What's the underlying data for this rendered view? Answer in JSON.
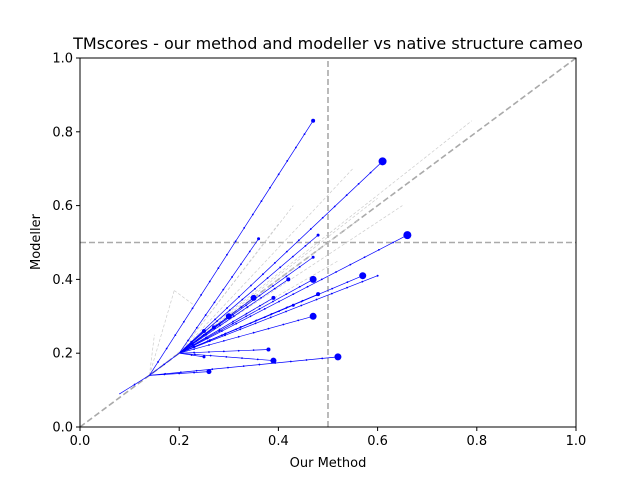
{
  "chart_data": {
    "type": "line",
    "title": "TMscores - our method and modeller vs native structure cameo",
    "xlabel": "Our Method",
    "ylabel": "Modeller",
    "xlim": [
      0,
      1
    ],
    "ylim": [
      0,
      1
    ],
    "xticks": [
      "0.0",
      "0.2",
      "0.4",
      "0.6",
      "0.8",
      "1.0"
    ],
    "yticks": [
      "0.0",
      "0.2",
      "0.4",
      "0.6",
      "0.8",
      "1.0"
    ],
    "grid": false,
    "reference_lines": {
      "diagonal": {
        "from": [
          0,
          0
        ],
        "to": [
          1,
          1
        ],
        "style": "dashed",
        "color": "#aaaaaa"
      },
      "vertical": {
        "x": 0.5,
        "style": "dashed",
        "color": "#aaaaaa"
      },
      "horizontal": {
        "y": 0.5,
        "style": "dashed",
        "color": "#aaaaaa"
      }
    },
    "colors": {
      "highlighted": "#0000ff",
      "faded": "#cccccc"
    },
    "highlighted_trajectories": [
      {
        "start": [
          0.14,
          0.14
        ],
        "end": [
          0.47,
          0.83
        ],
        "end_size": 2
      },
      {
        "start": [
          0.2,
          0.2
        ],
        "end": [
          0.61,
          0.72
        ],
        "end_size": 4
      },
      {
        "start": [
          0.2,
          0.2
        ],
        "end": [
          0.66,
          0.52
        ],
        "end_size": 4
      },
      {
        "start": [
          0.2,
          0.2
        ],
        "end": [
          0.36,
          0.51
        ],
        "end_size": 1.5
      },
      {
        "start": [
          0.2,
          0.2
        ],
        "end": [
          0.48,
          0.52
        ],
        "end_size": 1.5
      },
      {
        "start": [
          0.2,
          0.2
        ],
        "end": [
          0.47,
          0.46
        ],
        "end_size": 1.5
      },
      {
        "start": [
          0.2,
          0.2
        ],
        "end": [
          0.42,
          0.4
        ],
        "end_size": 2
      },
      {
        "start": [
          0.2,
          0.2
        ],
        "end": [
          0.47,
          0.4
        ],
        "end_size": 3.5
      },
      {
        "start": [
          0.2,
          0.2
        ],
        "end": [
          0.57,
          0.41
        ],
        "end_size": 3.5
      },
      {
        "start": [
          0.2,
          0.2
        ],
        "end": [
          0.6,
          0.41
        ],
        "end_size": 1
      },
      {
        "start": [
          0.2,
          0.2
        ],
        "end": [
          0.48,
          0.36
        ],
        "end_size": 2
      },
      {
        "start": [
          0.2,
          0.2
        ],
        "end": [
          0.35,
          0.35
        ],
        "end_size": 3
      },
      {
        "start": [
          0.2,
          0.2
        ],
        "end": [
          0.39,
          0.35
        ],
        "end_size": 2
      },
      {
        "start": [
          0.2,
          0.2
        ],
        "end": [
          0.43,
          0.33
        ],
        "end_size": 1.5
      },
      {
        "start": [
          0.2,
          0.2
        ],
        "end": [
          0.47,
          0.3
        ],
        "end_size": 3.5
      },
      {
        "start": [
          0.2,
          0.2
        ],
        "end": [
          0.3,
          0.3
        ],
        "end_size": 3
      },
      {
        "start": [
          0.2,
          0.2
        ],
        "end": [
          0.27,
          0.27
        ],
        "end_size": 2
      },
      {
        "start": [
          0.2,
          0.2
        ],
        "end": [
          0.25,
          0.26
        ],
        "end_size": 2
      },
      {
        "start": [
          0.2,
          0.2
        ],
        "end": [
          0.38,
          0.21
        ],
        "end_size": 2
      },
      {
        "start": [
          0.2,
          0.2
        ],
        "end": [
          0.39,
          0.18
        ],
        "end_size": 3
      },
      {
        "start": [
          0.2,
          0.2
        ],
        "end": [
          0.25,
          0.19
        ],
        "end_size": 1.5
      },
      {
        "start": [
          0.14,
          0.14
        ],
        "end": [
          0.52,
          0.19
        ],
        "end_size": 3.5
      },
      {
        "start": [
          0.14,
          0.14
        ],
        "end": [
          0.26,
          0.15
        ],
        "end_size": 2.5
      },
      {
        "start": [
          0.14,
          0.14
        ],
        "end": [
          0.08,
          0.09
        ],
        "end_size": 0.5
      },
      {
        "start": [
          0.14,
          0.14
        ],
        "end": [
          0.2,
          0.2
        ],
        "end_size": 0.5
      }
    ],
    "faded_trajectories": [
      {
        "start": [
          0.14,
          0.14
        ],
        "end": [
          0.79,
          0.83
        ]
      },
      {
        "start": [
          0.2,
          0.2
        ],
        "end": [
          0.65,
          0.6
        ]
      },
      {
        "start": [
          0.2,
          0.2
        ],
        "end": [
          0.55,
          0.7
        ]
      },
      {
        "start": [
          0.2,
          0.2
        ],
        "end": [
          0.6,
          0.62
        ]
      },
      {
        "start": [
          0.2,
          0.2
        ],
        "end": [
          0.43,
          0.6
        ]
      },
      {
        "start": [
          0.2,
          0.2
        ],
        "end": [
          0.4,
          0.55
        ]
      },
      {
        "start": [
          0.14,
          0.14
        ],
        "end": [
          0.19,
          0.37
        ]
      },
      {
        "start": [
          0.19,
          0.37
        ],
        "end": [
          0.23,
          0.33
        ]
      },
      {
        "start": [
          0.2,
          0.2
        ],
        "end": [
          0.56,
          0.56
        ]
      },
      {
        "start": [
          0.14,
          0.14
        ],
        "end": [
          0.15,
          0.25
        ]
      },
      {
        "start": [
          0.2,
          0.2
        ],
        "end": [
          0.52,
          0.45
        ]
      }
    ]
  }
}
